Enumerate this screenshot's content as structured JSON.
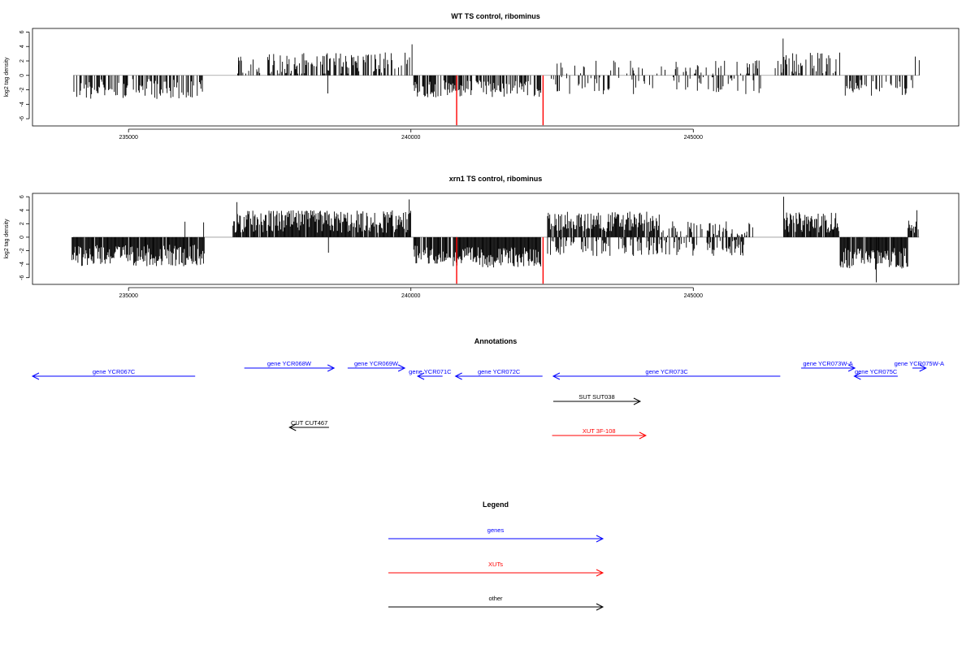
{
  "chart_data": [
    {
      "type": "bar",
      "title": "WT TS control, ribominus",
      "xlabel": "",
      "ylabel": "log2 tag density",
      "xlim": [
        233300,
        249700
      ],
      "ylim": [
        -7,
        6.5
      ],
      "x_ticks": [
        235000,
        240000,
        245000
      ],
      "y_ticks": [
        -6,
        -4,
        -2,
        0,
        2,
        4,
        6
      ],
      "bar_color": "#000000",
      "highlight_color": "#ff0000",
      "segments": [
        {
          "start": 234020,
          "end": 236320,
          "dir": -1,
          "density": 0.55,
          "mean": 1.9,
          "amp": 1.4
        },
        {
          "start": 236920,
          "end": 240000,
          "dir": 1,
          "density": 0.5,
          "mean": 1.6,
          "amp": 1.6
        },
        {
          "start": 240050,
          "end": 242300,
          "dir": -1,
          "density": 0.65,
          "mean": 1.9,
          "amp": 1.2
        },
        {
          "start": 242420,
          "end": 246200,
          "dir": 1,
          "density": 0.18,
          "mean": 1.0,
          "amp": 1.2
        },
        {
          "start": 242420,
          "end": 246200,
          "dir": -1,
          "density": 0.25,
          "mean": 1.3,
          "amp": 1.3
        },
        {
          "start": 246500,
          "end": 247600,
          "dir": 1,
          "density": 0.4,
          "mean": 1.7,
          "amp": 1.5
        },
        {
          "start": 247700,
          "end": 248900,
          "dir": -1,
          "density": 0.5,
          "mean": 1.8,
          "amp": 1.2
        }
      ],
      "spikes": [
        {
          "x": 236950,
          "y": 1.5
        },
        {
          "x": 238530,
          "y": -2.5
        },
        {
          "x": 240020,
          "y": 4.3
        },
        {
          "x": 242200,
          "y": -2.7
        },
        {
          "x": 246100,
          "y": 2.0
        },
        {
          "x": 246450,
          "y": 1.0
        },
        {
          "x": 246590,
          "y": 5.1
        },
        {
          "x": 247100,
          "y": 2.8
        },
        {
          "x": 247690,
          "y": -2.8
        },
        {
          "x": 248930,
          "y": 2.6
        },
        {
          "x": 249000,
          "y": 2.1
        }
      ],
      "highlights": [
        {
          "x": 240810,
          "y": -6.9
        },
        {
          "x": 242340,
          "y": -6.9
        }
      ]
    },
    {
      "type": "bar",
      "title": "xrn1 TS control, ribominus",
      "xlabel": "",
      "ylabel": "log2 tag density",
      "xlim": [
        233300,
        249700
      ],
      "ylim": [
        -7,
        6.5
      ],
      "x_ticks": [
        235000,
        240000,
        245000
      ],
      "y_ticks": [
        -6,
        -4,
        -2,
        0,
        2,
        4,
        6
      ],
      "bar_color": "#000000",
      "highlight_color": "#ff0000",
      "segments": [
        {
          "start": 234000,
          "end": 236350,
          "dir": -1,
          "density": 0.95,
          "mean": 2.7,
          "amp": 1.6
        },
        {
          "start": 236850,
          "end": 240000,
          "dir": 1,
          "density": 0.95,
          "mean": 2.3,
          "amp": 1.7
        },
        {
          "start": 240050,
          "end": 240700,
          "dir": -1,
          "density": 0.9,
          "mean": 2.6,
          "amp": 1.4
        },
        {
          "start": 240750,
          "end": 242300,
          "dir": -1,
          "density": 0.98,
          "mean": 3.0,
          "amp": 1.5
        },
        {
          "start": 242420,
          "end": 244400,
          "dir": 1,
          "density": 0.9,
          "mean": 2.3,
          "amp": 1.5
        },
        {
          "start": 242420,
          "end": 245900,
          "dir": -1,
          "density": 0.45,
          "mean": 1.5,
          "amp": 1.3
        },
        {
          "start": 244400,
          "end": 246100,
          "dir": 1,
          "density": 0.3,
          "mean": 1.2,
          "amp": 1.2
        },
        {
          "start": 246600,
          "end": 247600,
          "dir": 1,
          "density": 0.9,
          "mean": 2.2,
          "amp": 1.5
        },
        {
          "start": 247600,
          "end": 248800,
          "dir": -1,
          "density": 0.95,
          "mean": 3.2,
          "amp": 1.6
        },
        {
          "start": 248800,
          "end": 249000,
          "dir": 1,
          "density": 0.8,
          "mean": 1.5,
          "amp": 1.0
        }
      ],
      "spikes": [
        {
          "x": 235300,
          "y": -2.6
        },
        {
          "x": 236000,
          "y": 2.3
        },
        {
          "x": 236330,
          "y": 2.2
        },
        {
          "x": 236920,
          "y": 5.2
        },
        {
          "x": 238540,
          "y": -2.3
        },
        {
          "x": 239970,
          "y": 5.6
        },
        {
          "x": 246600,
          "y": 6.0
        },
        {
          "x": 248240,
          "y": -6.7
        },
        {
          "x": 248960,
          "y": 4.0
        }
      ],
      "highlights": [
        {
          "x": 240810,
          "y": -6.9
        },
        {
          "x": 242340,
          "y": -6.9
        }
      ]
    }
  ],
  "annotations": {
    "title": "Annotations",
    "features": [
      {
        "label": "gene YCR067C",
        "start": 233300,
        "end": 236180,
        "dir": -1,
        "color": "#0000ff",
        "row": 1
      },
      {
        "label": "gene YCR068W",
        "start": 237050,
        "end": 238640,
        "dir": 1,
        "color": "#0000ff",
        "row": 0
      },
      {
        "label": "gene YCR069W",
        "start": 238880,
        "end": 239890,
        "dir": 1,
        "color": "#0000ff",
        "row": 0
      },
      {
        "label": "gene YCR071C",
        "start": 240120,
        "end": 240560,
        "dir": -1,
        "color": "#0000ff",
        "row": 1
      },
      {
        "label": "gene YCR072C",
        "start": 240790,
        "end": 242330,
        "dir": -1,
        "color": "#0000ff",
        "row": 1
      },
      {
        "label": "gene YCR073C",
        "start": 242520,
        "end": 246540,
        "dir": -1,
        "color": "#0000ff",
        "row": 1
      },
      {
        "label": "gene YCR073W-A",
        "start": 246910,
        "end": 247860,
        "dir": 1,
        "color": "#0000ff",
        "row": 0
      },
      {
        "label": "gene YCR075C",
        "start": 247850,
        "end": 248620,
        "dir": -1,
        "color": "#0000ff",
        "row": 1
      },
      {
        "label": "gene YCR075W-A",
        "start": 248880,
        "end": 249120,
        "dir": 1,
        "color": "#0000ff",
        "row": 0
      },
      {
        "label": "SUT SUT038",
        "start": 242520,
        "end": 244060,
        "dir": 1,
        "color": "#000000",
        "row": 2
      },
      {
        "label": "CUT CUT467",
        "start": 237850,
        "end": 238550,
        "dir": -1,
        "color": "#000000",
        "row": 3
      },
      {
        "label": "XUT 3F-108",
        "start": 242500,
        "end": 244160,
        "dir": 1,
        "color": "#ff0000",
        "row": 4
      }
    ]
  },
  "legend": {
    "title": "Legend",
    "items": [
      {
        "label": "genes",
        "color": "#0000ff"
      },
      {
        "label": "XUTs",
        "color": "#ff0000"
      },
      {
        "label": "other",
        "color": "#000000"
      }
    ]
  }
}
